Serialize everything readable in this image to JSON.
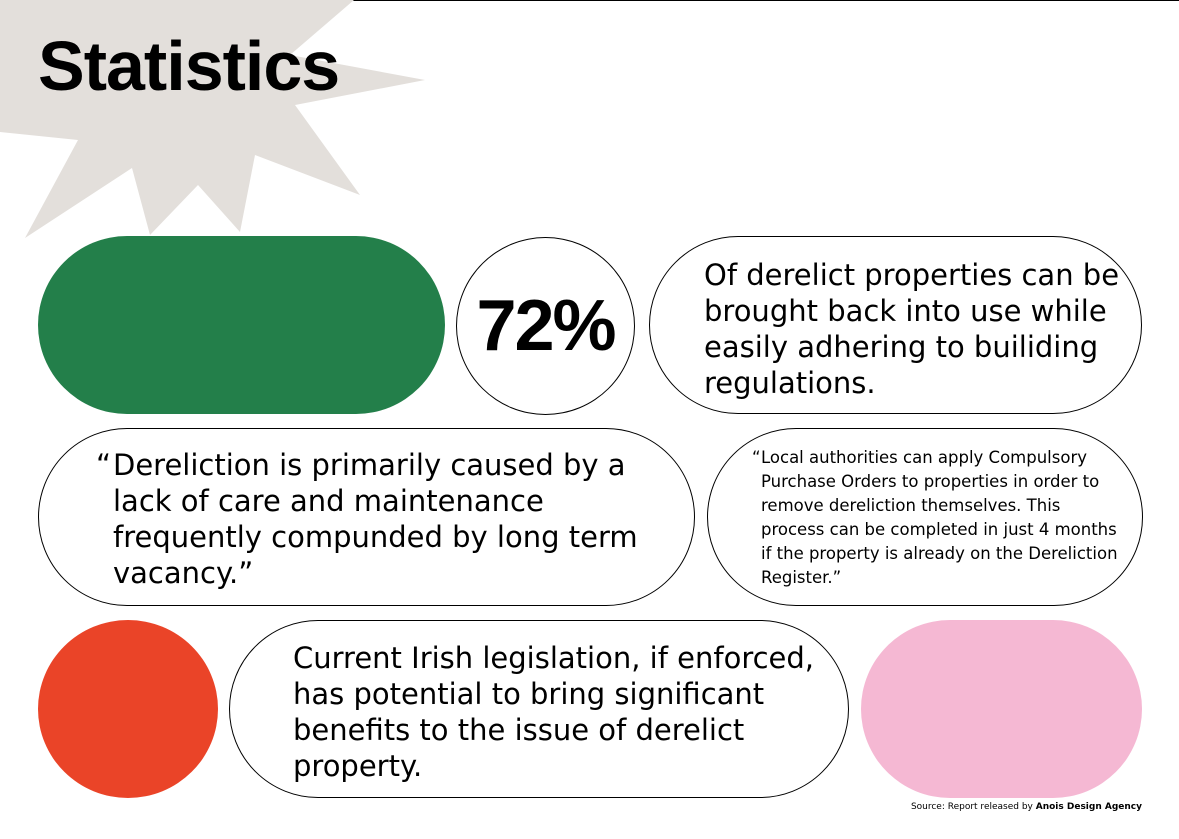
{
  "page": {
    "title": "Statistics"
  },
  "colors": {
    "green": "#237f4a",
    "red": "#ea4428",
    "pink": "#f5b8d3",
    "starburst": "#e3dfdb"
  },
  "stat": {
    "percent": "72%",
    "text": "Of derelict properties can be brought back into use while easily adhering to builiding regulations."
  },
  "quote_1": {
    "open_mark": "“",
    "text": "Dereliction is primarily caused by a lack of care and maintenance frequently compunded by long term vacancy.”"
  },
  "quote_2": {
    "open_mark": "“",
    "text": "Local authorities can apply Compulsory Purchase Orders to properties in order to remove dereliction themselves. This process can be completed in just 4 months if the property is already on the Dereliction Register.”"
  },
  "legislation": {
    "text": "Current Irish legislation, if enforced, has potential to bring significant benefits to the issue of derelict property."
  },
  "source": {
    "label": "Source: Report released by ",
    "agency": "Anois Design Agency"
  }
}
